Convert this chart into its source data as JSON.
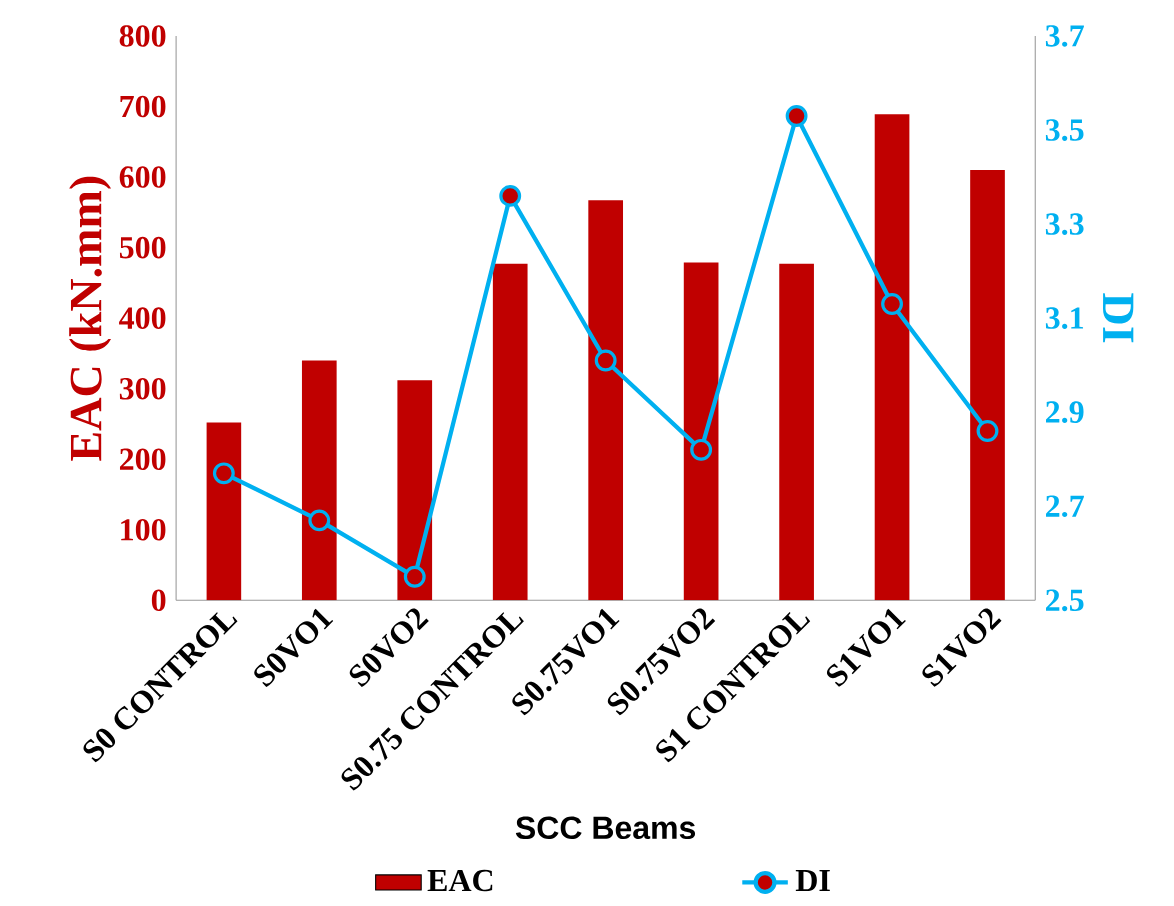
{
  "chart_data": {
    "type": "bar",
    "xlabel": "SCC Beams",
    "ylabel": "EAC  (kN.mm)",
    "y2label": "DI",
    "categories": [
      "S0 CONTROL",
      "S0VO1",
      "S0VO2",
      "S0.75 CONTROL",
      "S0.75VO1",
      "S0.75VO2",
      "S1 CONTROL",
      "S1VO1",
      "S1VO2"
    ],
    "series": [
      {
        "name": "EAC",
        "color": "#c00000",
        "values": [
          252,
          340,
          312,
          477,
          567,
          479,
          477,
          689,
          610
        ]
      },
      {
        "name": "DI",
        "type": "line",
        "axis": "y2",
        "color": "#00b0f0",
        "marker": "circle",
        "values": [
          2.77,
          2.67,
          2.55,
          3.36,
          3.01,
          2.82,
          3.53,
          3.13,
          2.86
        ]
      }
    ],
    "ylim": [
      0,
      800
    ],
    "yticks": [
      0,
      100,
      200,
      300,
      400,
      500,
      600,
      700,
      800
    ],
    "y2lim": [
      2.5,
      3.7
    ],
    "y2ticks": [
      2.5,
      2.7,
      2.9,
      3.1,
      3.3,
      3.5,
      3.7
    ],
    "legend": "bottom"
  }
}
